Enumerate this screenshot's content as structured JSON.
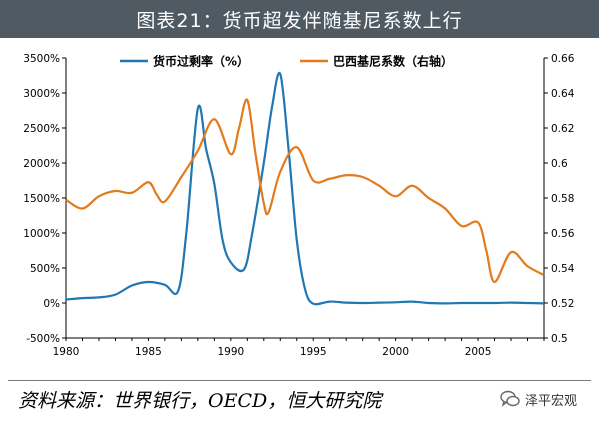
{
  "header": {
    "title": "图表21：货币超发伴随基尼系数上行"
  },
  "footer": {
    "source": "资料来源：世界银行，OECD，恒大研究院",
    "watermark": "泽平宏观"
  },
  "icons": {
    "watermark_icon": "wechat-bubble-icon"
  },
  "colors": {
    "title_bg": "#4f5a63",
    "series_blue": "#1f78b4",
    "series_orange": "#e37b1c"
  },
  "chart_data": {
    "type": "line",
    "title": "",
    "x_ticks": [
      "1980",
      "1985",
      "1990",
      "1995",
      "2000",
      "2005"
    ],
    "xlim": [
      1980,
      2009
    ],
    "left_axis": {
      "ylim": [
        -500,
        3500
      ],
      "ticks": [
        "-500%",
        "0%",
        "500%",
        "1000%",
        "1500%",
        "2000%",
        "2500%",
        "3000%",
        "3500%"
      ]
    },
    "right_axis": {
      "ylim": [
        0.5,
        0.66
      ],
      "ticks": [
        "0.5",
        "0.52",
        "0.54",
        "0.56",
        "0.58",
        "0.6",
        "0.62",
        "0.64",
        "0.66"
      ]
    },
    "legend_position": "top-center",
    "series": [
      {
        "name": "货币过剩率（%）",
        "axis": "left",
        "color": "#1f78b4",
        "points": [
          [
            1980,
            50
          ],
          [
            1981,
            70
          ],
          [
            1982,
            80
          ],
          [
            1983,
            120
          ],
          [
            1984,
            250
          ],
          [
            1985,
            300
          ],
          [
            1986,
            260
          ],
          [
            1986.8,
            170
          ],
          [
            1987.3,
            1000
          ],
          [
            1988,
            2780
          ],
          [
            1988.5,
            2200
          ],
          [
            1989,
            1700
          ],
          [
            1989.5,
            900
          ],
          [
            1990,
            580
          ],
          [
            1990.8,
            480
          ],
          [
            1991.3,
            1000
          ],
          [
            1992,
            2000
          ],
          [
            1992.5,
            2800
          ],
          [
            1993,
            3270
          ],
          [
            1993.5,
            2200
          ],
          [
            1994,
            900
          ],
          [
            1994.5,
            200
          ],
          [
            1995,
            -10
          ],
          [
            1996,
            20
          ],
          [
            1997,
            5
          ],
          [
            1998,
            0
          ],
          [
            1999,
            5
          ],
          [
            2000,
            10
          ],
          [
            2001,
            20
          ],
          [
            2002,
            0
          ],
          [
            2003,
            -5
          ],
          [
            2004,
            0
          ],
          [
            2005,
            0
          ],
          [
            2006,
            0
          ],
          [
            2007,
            5
          ],
          [
            2008,
            0
          ],
          [
            2009,
            -5
          ]
        ]
      },
      {
        "name": "巴西基尼系数（右轴）",
        "axis": "right",
        "color": "#e37b1c",
        "points": [
          [
            1980,
            0.579
          ],
          [
            1981,
            0.574
          ],
          [
            1982,
            0.581
          ],
          [
            1983,
            0.584
          ],
          [
            1984,
            0.583
          ],
          [
            1985,
            0.589
          ],
          [
            1985.5,
            0.582
          ],
          [
            1986,
            0.578
          ],
          [
            1987,
            0.592
          ],
          [
            1988,
            0.607
          ],
          [
            1989,
            0.625
          ],
          [
            1990,
            0.605
          ],
          [
            1990.5,
            0.62
          ],
          [
            1991,
            0.636
          ],
          [
            1991.5,
            0.605
          ],
          [
            1992,
            0.577
          ],
          [
            1992.3,
            0.572
          ],
          [
            1993,
            0.595
          ],
          [
            1994,
            0.609
          ],
          [
            1995,
            0.59
          ],
          [
            1996,
            0.591
          ],
          [
            1997,
            0.593
          ],
          [
            1998,
            0.592
          ],
          [
            1999,
            0.587
          ],
          [
            2000,
            0.581
          ],
          [
            2001,
            0.587
          ],
          [
            2002,
            0.58
          ],
          [
            2003,
            0.574
          ],
          [
            2004,
            0.564
          ],
          [
            2005,
            0.566
          ],
          [
            2005.5,
            0.55
          ],
          [
            2006,
            0.532
          ],
          [
            2007,
            0.549
          ],
          [
            2008,
            0.541
          ],
          [
            2009,
            0.536
          ]
        ]
      }
    ]
  }
}
